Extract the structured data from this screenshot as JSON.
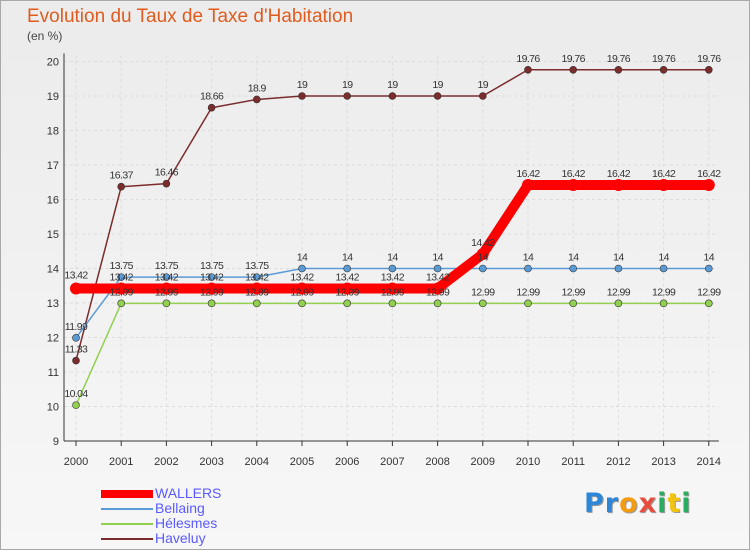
{
  "chart_data": {
    "type": "line",
    "title": "Evolution du Taux de Taxe d'Habitation",
    "ylabel": "(en %)",
    "xlabel": "",
    "ylim": [
      9,
      20
    ],
    "yticks": [
      "9",
      "10",
      "11",
      "12",
      "13",
      "14",
      "15",
      "16",
      "17",
      "18",
      "19",
      "20"
    ],
    "categories": [
      "2000",
      "2001",
      "2002",
      "2003",
      "2004",
      "2005",
      "2006",
      "2007",
      "2008",
      "2009",
      "2010",
      "2011",
      "2012",
      "2013",
      "2014"
    ],
    "series": [
      {
        "name": "WALLERS",
        "color": "#ff0000",
        "values": [
          13.42,
          13.42,
          13.42,
          13.42,
          13.42,
          13.42,
          13.42,
          13.42,
          13.42,
          14.42,
          16.42,
          16.42,
          16.42,
          16.42,
          16.42
        ],
        "labels": [
          "13.42",
          "13.42",
          "13.42",
          "13.42",
          "13.42",
          "13.42",
          "13.42",
          "13.42",
          "13.42",
          "14.42",
          "16.42",
          "16.42",
          "16.42",
          "16.42",
          "16.42"
        ]
      },
      {
        "name": "Bellaing",
        "color": "#5b9bd5",
        "values": [
          11.99,
          13.75,
          13.75,
          13.75,
          13.75,
          14,
          14,
          14,
          14,
          14,
          14,
          14,
          14,
          14,
          14
        ],
        "labels": [
          "11.99",
          "13.75",
          "13.75",
          "13.75",
          "13.75",
          "14",
          "14",
          "14",
          "14",
          "14",
          "14",
          "14",
          "14",
          "14",
          "14"
        ]
      },
      {
        "name": "Hélesmes",
        "color": "#92d050",
        "values": [
          10.04,
          12.99,
          12.99,
          12.99,
          12.99,
          12.99,
          12.99,
          12.99,
          12.99,
          12.99,
          12.99,
          12.99,
          12.99,
          12.99,
          12.99
        ],
        "labels": [
          "10.04",
          "12.99",
          "12.99",
          "12.99",
          "12.99",
          "12.99",
          "12.99",
          "12.99",
          "12.99",
          "12.99",
          "12.99",
          "12.99",
          "12.99",
          "12.99",
          "12.99"
        ]
      },
      {
        "name": "Haveluy",
        "color": "#7b2c2c",
        "values": [
          11.33,
          16.37,
          16.46,
          18.66,
          18.9,
          19,
          19,
          19,
          19,
          19,
          19.76,
          19.76,
          19.76,
          19.76,
          19.76
        ],
        "labels": [
          "11.33",
          "16.37",
          "16.46",
          "18.66",
          "18.9",
          "19",
          "19",
          "19",
          "19",
          "19",
          "19.76",
          "19.76",
          "19.76",
          "19.76",
          "19.76"
        ]
      }
    ]
  },
  "legend": {
    "items": [
      {
        "label": "WALLERS",
        "color": "#ff0000"
      },
      {
        "label": "Bellaing",
        "color": "#5b9bd5"
      },
      {
        "label": "Hélesmes",
        "color": "#92d050"
      },
      {
        "label": "Haveluy",
        "color": "#7b2c2c"
      }
    ]
  },
  "brand": {
    "letters": [
      {
        "char": "P",
        "color": "#2e86d9"
      },
      {
        "char": "r",
        "color": "#2e86d9"
      },
      {
        "char": "o",
        "color": "#f39c12"
      },
      {
        "char": "x",
        "color": "#e74c3c"
      },
      {
        "char": "i",
        "color": "#27ae60"
      },
      {
        "char": "t",
        "color": "#f1c40f"
      },
      {
        "char": "i",
        "color": "#27ae60"
      }
    ]
  }
}
